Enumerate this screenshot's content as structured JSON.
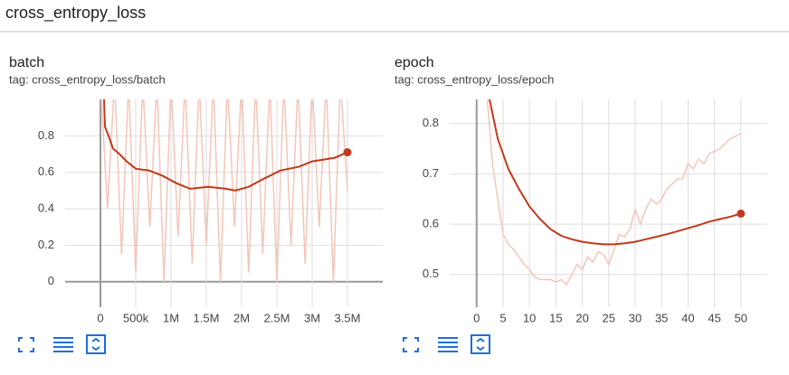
{
  "header": {
    "title": "cross_entropy_loss"
  },
  "chart_data": [
    {
      "type": "line",
      "title": "batch",
      "subtitle": "tag: cross_entropy_loss/batch",
      "xlim": [
        -500000,
        4000000
      ],
      "xticks": [
        0,
        {
          "value": 500000,
          "label": "500k"
        },
        {
          "value": 1000000,
          "label": "1M"
        },
        {
          "value": 1500000,
          "label": "1.5M"
        },
        {
          "value": 2000000,
          "label": "2M"
        },
        {
          "value": 2500000,
          "label": "2.5M"
        },
        {
          "value": 3000000,
          "label": "3M"
        },
        {
          "value": 3500000,
          "label": "3.5M"
        }
      ],
      "ylim": [
        -0.14,
        1.0
      ],
      "yticks": [
        0,
        0.2,
        0.4,
        0.6,
        0.8
      ],
      "grid": true,
      "series": [
        {
          "color": "#f3c6b9",
          "x": [
            0,
            100000,
            200000,
            300000,
            400000,
            500000,
            600000,
            700000,
            800000,
            900000,
            1000000,
            1100000,
            1200000,
            1300000,
            1400000,
            1500000,
            1600000,
            1700000,
            1800000,
            1900000,
            2000000,
            2100000,
            2200000,
            2300000,
            2400000,
            2500000,
            2600000,
            2700000,
            2800000,
            2900000,
            3000000,
            3100000,
            3200000,
            3300000,
            3400000,
            3500000
          ],
          "values": [
            1.1,
            0.4,
            1.1,
            0.15,
            1.1,
            0.05,
            1.1,
            0.3,
            1.1,
            0.0,
            1.1,
            0.25,
            1.1,
            0.1,
            1.1,
            0.2,
            1.1,
            0.0,
            1.1,
            0.3,
            1.1,
            0.05,
            1.1,
            0.15,
            1.1,
            0.0,
            1.1,
            0.2,
            1.1,
            0.1,
            1.1,
            0.3,
            1.1,
            0.0,
            1.1,
            0.5
          ]
        },
        {
          "color": "#c0391b",
          "x": [
            51000,
            64000,
            115000,
            180000,
            269000,
            372000,
            500000,
            692000,
            885000,
            1077000,
            1270000,
            1526000,
            1780000,
            1910000,
            2100000,
            2290000,
            2550000,
            2810000,
            3000000,
            3320000,
            3500000
          ],
          "values": [
            1.0,
            0.85,
            0.8,
            0.73,
            0.7,
            0.66,
            0.62,
            0.61,
            0.58,
            0.54,
            0.51,
            0.52,
            0.51,
            0.5,
            0.52,
            0.56,
            0.61,
            0.63,
            0.66,
            0.68,
            0.71
          ]
        }
      ]
    },
    {
      "type": "line",
      "title": "epoch",
      "subtitle": "tag: cross_entropy_loss/epoch",
      "xlim": [
        -5.1,
        55
      ],
      "xticks": [
        0,
        5,
        10,
        15,
        20,
        25,
        30,
        35,
        40,
        45,
        50
      ],
      "ylim": [
        0.435,
        0.848
      ],
      "yticks": [
        0.5,
        0.6,
        0.7,
        0.8
      ],
      "grid": true,
      "series": [
        {
          "color": "#f3c6b9",
          "x": [
            2,
            3,
            4,
            5,
            6,
            7,
            8,
            9,
            10,
            11,
            12,
            13,
            14,
            15,
            16,
            17,
            18,
            19,
            20,
            21,
            22,
            23,
            24,
            25,
            26,
            27,
            28,
            29,
            30,
            31,
            32,
            33,
            34,
            35,
            36,
            37,
            38,
            39,
            40,
            41,
            42,
            43,
            44,
            45,
            46,
            47,
            48,
            49,
            50
          ],
          "values": [
            0.85,
            0.72,
            0.65,
            0.58,
            0.56,
            0.55,
            0.535,
            0.52,
            0.51,
            0.495,
            0.49,
            0.49,
            0.49,
            0.485,
            0.49,
            0.48,
            0.5,
            0.52,
            0.51,
            0.535,
            0.525,
            0.545,
            0.54,
            0.52,
            0.55,
            0.58,
            0.575,
            0.59,
            0.63,
            0.6,
            0.63,
            0.65,
            0.64,
            0.65,
            0.67,
            0.68,
            0.69,
            0.69,
            0.72,
            0.71,
            0.73,
            0.72,
            0.74,
            0.745,
            0.75,
            0.76,
            0.77,
            0.775,
            0.78
          ]
        },
        {
          "color": "#c0391b",
          "x": [
            2,
            4,
            6,
            8,
            10,
            12,
            14,
            16,
            18,
            20,
            22,
            24,
            26,
            28,
            30,
            32,
            34,
            36,
            38,
            40,
            42,
            44,
            46,
            48,
            50
          ],
          "values": [
            0.87,
            0.77,
            0.71,
            0.67,
            0.635,
            0.61,
            0.59,
            0.577,
            0.57,
            0.565,
            0.562,
            0.56,
            0.56,
            0.562,
            0.565,
            0.57,
            0.575,
            0.58,
            0.586,
            0.592,
            0.598,
            0.605,
            0.61,
            0.615,
            0.621
          ]
        }
      ]
    }
  ]
}
